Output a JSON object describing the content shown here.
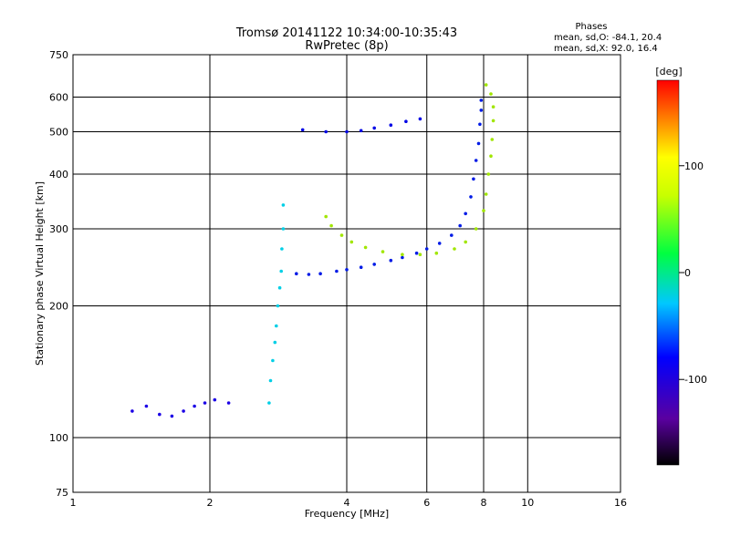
{
  "chart_data": {
    "type": "scatter",
    "title": "Tromsø 20141122 10:34:00-10:35:43",
    "subtitle": "RwPretec (8p)",
    "stats": {
      "heading": "Phases",
      "line_o": "mean, sd,O: -84.1, 20.4",
      "line_x": "mean, sd,X:  92.0, 16.4"
    },
    "xlabel": "Frequency [MHz]",
    "ylabel": "Stationary phase Virtual Height [km]",
    "x_scale": "log",
    "y_scale": "log",
    "xlim": [
      1,
      16
    ],
    "ylim": [
      75,
      750
    ],
    "x_ticks": [
      1,
      2,
      4,
      6,
      8,
      10,
      16
    ],
    "x_tick_labels": [
      "1",
      "2",
      "4",
      "6",
      "8",
      "10",
      "16"
    ],
    "y_ticks": [
      75,
      100,
      200,
      300,
      400,
      500,
      600,
      750
    ],
    "y_tick_labels": [
      "75",
      "100",
      "200",
      "300",
      "400",
      "500",
      "600",
      "750"
    ],
    "grid": true,
    "colorbar": {
      "label": "[deg]",
      "range": [
        -180,
        180
      ],
      "ticks": [
        100,
        0,
        -100
      ],
      "tick_labels": [
        "100",
        "0",
        "-100"
      ]
    },
    "series": [
      {
        "role": "O-mode F trace",
        "phase_deg": -84,
        "points": [
          [
            3.1,
            237
          ],
          [
            3.3,
            236
          ],
          [
            3.5,
            237
          ],
          [
            3.8,
            240
          ],
          [
            4.0,
            242
          ],
          [
            4.3,
            245
          ],
          [
            4.6,
            249
          ],
          [
            5.0,
            254
          ],
          [
            5.3,
            258
          ],
          [
            5.7,
            264
          ],
          [
            6.0,
            270
          ],
          [
            6.4,
            278
          ],
          [
            6.8,
            290
          ],
          [
            7.1,
            305
          ],
          [
            7.3,
            325
          ],
          [
            7.5,
            355
          ],
          [
            7.6,
            390
          ],
          [
            7.7,
            430
          ],
          [
            7.8,
            470
          ],
          [
            7.85,
            520
          ],
          [
            7.9,
            560
          ],
          [
            7.9,
            590
          ]
        ]
      },
      {
        "role": "X-mode F trace",
        "phase_deg": 92,
        "points": [
          [
            3.6,
            320
          ],
          [
            3.7,
            305
          ],
          [
            3.9,
            290
          ],
          [
            4.1,
            280
          ],
          [
            4.4,
            272
          ],
          [
            4.8,
            266
          ],
          [
            5.3,
            262
          ],
          [
            5.8,
            262
          ],
          [
            6.3,
            264
          ],
          [
            6.9,
            270
          ],
          [
            7.3,
            280
          ],
          [
            7.7,
            300
          ],
          [
            8.0,
            330
          ],
          [
            8.1,
            360
          ],
          [
            8.2,
            400
          ],
          [
            8.3,
            440
          ],
          [
            8.35,
            480
          ],
          [
            8.4,
            530
          ],
          [
            8.4,
            570
          ],
          [
            8.3,
            610
          ],
          [
            8.1,
            640
          ]
        ]
      },
      {
        "role": "O-mode E/Es band",
        "phase_deg": -90,
        "points": [
          [
            3.2,
            505
          ],
          [
            3.6,
            500
          ],
          [
            4.0,
            500
          ],
          [
            4.3,
            503
          ],
          [
            4.6,
            510
          ],
          [
            5.0,
            518
          ],
          [
            5.4,
            528
          ],
          [
            5.8,
            535
          ]
        ]
      },
      {
        "role": "low E trace",
        "phase_deg": -100,
        "points": [
          [
            1.35,
            115
          ],
          [
            1.45,
            118
          ],
          [
            1.55,
            113
          ],
          [
            1.65,
            112
          ],
          [
            1.75,
            115
          ],
          [
            1.85,
            118
          ],
          [
            1.95,
            120
          ],
          [
            2.05,
            122
          ],
          [
            2.2,
            120
          ]
        ]
      },
      {
        "role": "spread vertical trace",
        "phase_deg": -30,
        "points": [
          [
            2.7,
            120
          ],
          [
            2.72,
            135
          ],
          [
            2.75,
            150
          ],
          [
            2.78,
            165
          ],
          [
            2.8,
            180
          ],
          [
            2.82,
            200
          ],
          [
            2.85,
            220
          ],
          [
            2.87,
            240
          ],
          [
            2.88,
            270
          ],
          [
            2.9,
            300
          ],
          [
            2.9,
            340
          ]
        ]
      }
    ]
  }
}
